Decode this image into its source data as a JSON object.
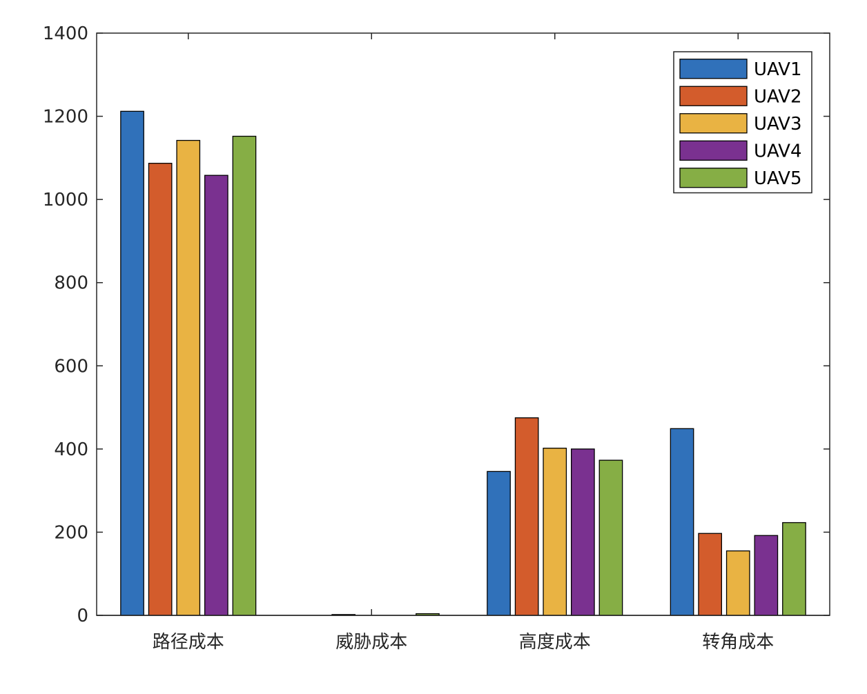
{
  "chart_data": {
    "type": "bar",
    "title": "",
    "xlabel": "",
    "ylabel": "",
    "ylim": [
      0,
      1400
    ],
    "yticks": [
      0,
      200,
      400,
      600,
      800,
      1000,
      1200,
      1400
    ],
    "categories": [
      "路径成本",
      "威胁成本",
      "高度成本",
      "转角成本"
    ],
    "series": [
      {
        "name": "UAV1",
        "color": "#3071BA",
        "values": [
          1212,
          0,
          346,
          449
        ]
      },
      {
        "name": "UAV2",
        "color": "#D35C2C",
        "values": [
          1087,
          2,
          475,
          197
        ]
      },
      {
        "name": "UAV3",
        "color": "#E9B343",
        "values": [
          1142,
          0,
          402,
          155
        ]
      },
      {
        "name": "UAV4",
        "color": "#7A3190",
        "values": [
          1058,
          0,
          400,
          192
        ]
      },
      {
        "name": "UAV5",
        "color": "#86AE45",
        "values": [
          1152,
          4,
          373,
          223
        ]
      }
    ],
    "legend_position": "top-right",
    "grid": false
  }
}
